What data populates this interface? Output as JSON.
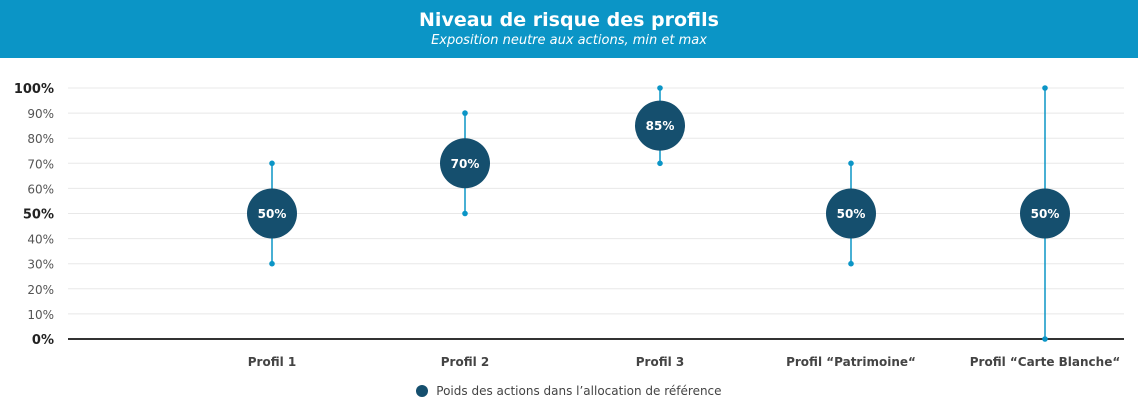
{
  "header": {
    "title": "Niveau de risque des profils",
    "subtitle": "Exposition neutre aux actions, min et max"
  },
  "colors": {
    "header_bg": "#0b95c6",
    "bubble": "#154f6e",
    "whisker": "#0b95c6",
    "axis": "#333333",
    "grid": "#e8e8e8"
  },
  "chart_data": {
    "type": "scatter",
    "title": "Niveau de risque des profils",
    "subtitle": "Exposition neutre aux actions, min et max",
    "categories": [
      "Profil 1",
      "Profil 2",
      "Profil 3",
      "Profil “Patrimoine“",
      "Profil “Carte Blanche“"
    ],
    "series": [
      {
        "name": "Poids des actions dans l’allocation de référence",
        "values": [
          50,
          70,
          85,
          50,
          50
        ],
        "labels": [
          "50%",
          "70%",
          "85%",
          "50%",
          "50%"
        ],
        "min": [
          30,
          50,
          70,
          30,
          0
        ],
        "max": [
          70,
          90,
          100,
          70,
          100
        ]
      }
    ],
    "ylim": [
      0,
      100
    ],
    "yticks": [
      0,
      10,
      20,
      30,
      40,
      50,
      60,
      70,
      80,
      90,
      100
    ],
    "ytick_labels": [
      "0%",
      "10%",
      "20%",
      "30%",
      "40%",
      "50%",
      "60%",
      "70%",
      "80%",
      "90%",
      "100%"
    ],
    "ytick_bold": [
      0,
      50,
      100
    ],
    "grid": true,
    "legend_position": "bottom-center"
  },
  "legend": {
    "label": "Poids des actions dans l’allocation de référence"
  }
}
